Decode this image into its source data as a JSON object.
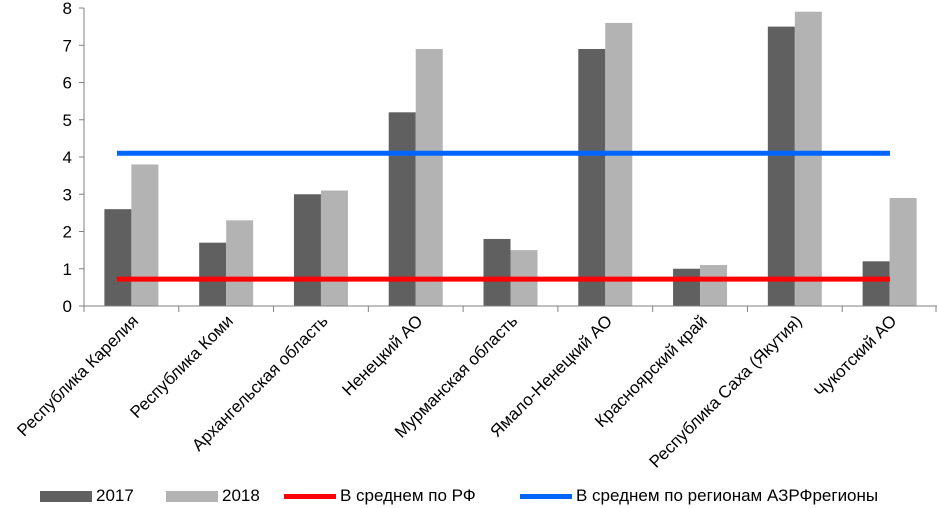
{
  "chart_data": {
    "type": "bar",
    "title": "",
    "xlabel": "",
    "ylabel": "",
    "ylim": [
      0,
      8
    ],
    "yticks": [
      "0",
      "1",
      "2",
      "3",
      "4",
      "5",
      "6",
      "7",
      "8"
    ],
    "categories": [
      "Республика Карелия",
      "Республика Коми",
      "Архангельская область",
      "Ненецкий АО",
      "Мурманская область",
      "Ямало-Ненецкий АО",
      "Красноярский край",
      "Республика Саха (Якутия)",
      "Чукотский АО"
    ],
    "series": [
      {
        "name": "2017",
        "color": "#606060",
        "values": [
          2.6,
          1.7,
          3.0,
          5.2,
          1.8,
          6.9,
          1.0,
          7.5,
          1.2
        ]
      },
      {
        "name": "2018",
        "color": "#b3b3b3",
        "values": [
          3.8,
          2.3,
          3.1,
          6.9,
          1.5,
          7.6,
          1.1,
          7.9,
          2.9
        ]
      }
    ],
    "reference_lines": [
      {
        "name": "В среднем по РФ",
        "color": "#ff0000",
        "value": 0.72
      },
      {
        "name": "В среднем по регионам АЗРФрегионы",
        "color": "#0066ff",
        "value": 4.1
      }
    ],
    "grid": false,
    "legend_position": "bottom"
  }
}
